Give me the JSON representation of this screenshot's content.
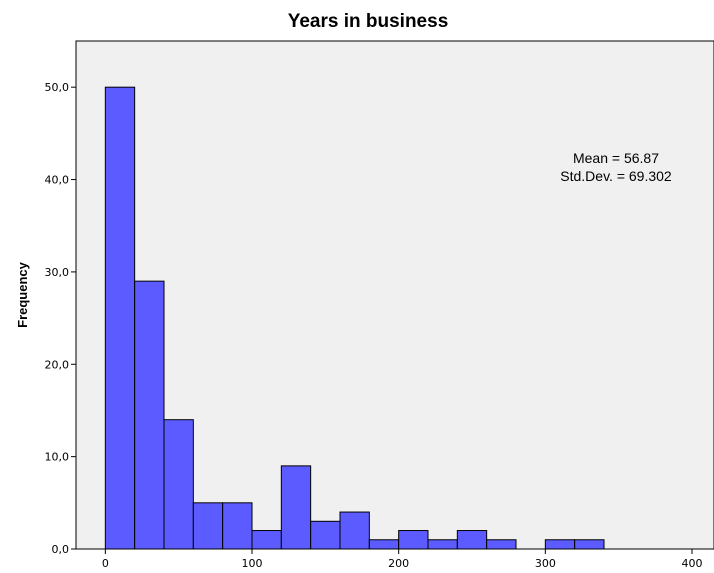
{
  "chart_data": {
    "type": "bar",
    "title": "Years in business",
    "xlabel": "",
    "ylabel": "Frequency",
    "bin_width": 20,
    "bins": [
      {
        "start": 0,
        "end": 20,
        "value": 50
      },
      {
        "start": 20,
        "end": 40,
        "value": 29
      },
      {
        "start": 40,
        "end": 60,
        "value": 14
      },
      {
        "start": 60,
        "end": 80,
        "value": 5
      },
      {
        "start": 80,
        "end": 100,
        "value": 5
      },
      {
        "start": 100,
        "end": 120,
        "value": 2
      },
      {
        "start": 120,
        "end": 140,
        "value": 9
      },
      {
        "start": 140,
        "end": 160,
        "value": 3
      },
      {
        "start": 160,
        "end": 180,
        "value": 4
      },
      {
        "start": 180,
        "end": 200,
        "value": 1
      },
      {
        "start": 200,
        "end": 220,
        "value": 2
      },
      {
        "start": 220,
        "end": 240,
        "value": 1
      },
      {
        "start": 240,
        "end": 260,
        "value": 2
      },
      {
        "start": 260,
        "end": 280,
        "value": 1
      },
      {
        "start": 280,
        "end": 300,
        "value": 0
      },
      {
        "start": 300,
        "end": 320,
        "value": 1
      },
      {
        "start": 320,
        "end": 340,
        "value": 1
      }
    ],
    "xlim": [
      -20,
      415
    ],
    "ylim": [
      0,
      55
    ],
    "x_ticks": [
      0,
      100,
      200,
      300,
      400
    ],
    "y_ticks": [
      0,
      10,
      20,
      30,
      40,
      50
    ],
    "x_tick_labels": [
      "0",
      "100",
      "200",
      "300",
      "400"
    ],
    "y_tick_labels": [
      "0,0",
      "10,0",
      "20,0",
      "30,0",
      "40,0",
      "50,0"
    ],
    "annotations": [
      "Mean = 56.87",
      "Std.Dev. = 69.302"
    ],
    "grid": false,
    "legend": "none"
  },
  "colors": {
    "bar_fill": "#5b5bff",
    "bar_stroke": "#000000",
    "plot_background": "#f0f0f0",
    "axis": "#000000"
  }
}
